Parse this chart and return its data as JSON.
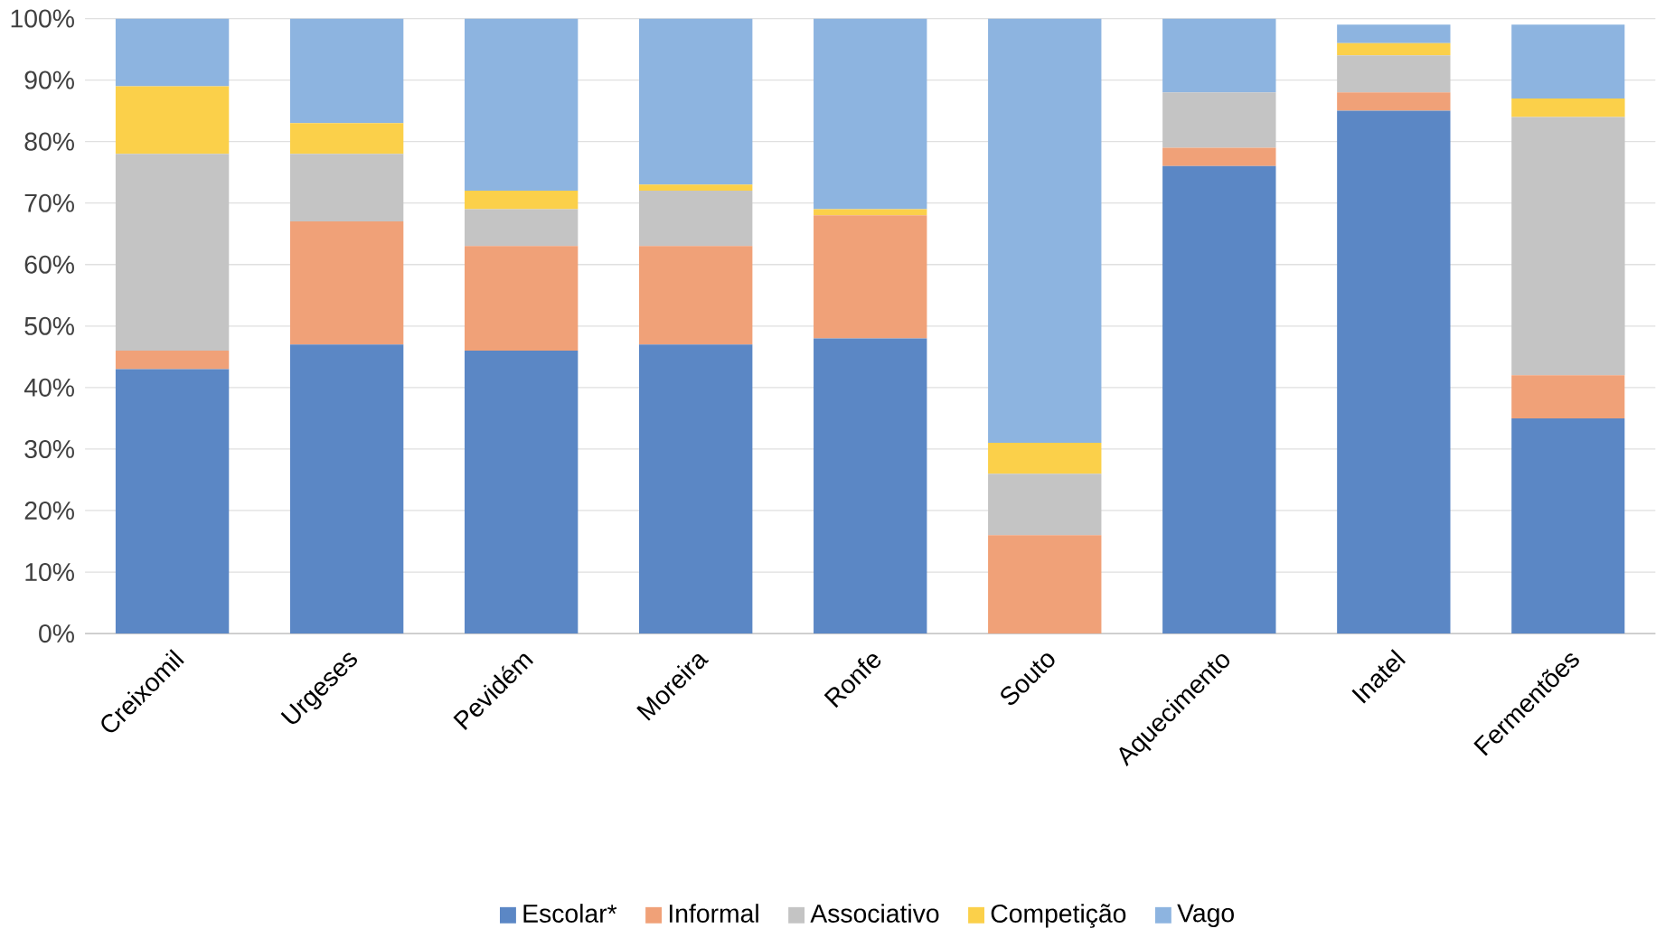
{
  "chart_data": {
    "type": "bar",
    "stacked": true,
    "categories": [
      "Creixomil",
      "Urgeses",
      "Pevidém",
      "Moreira",
      "Ronfe",
      "Souto",
      "Aquecimento",
      "Inatel",
      "Fermentões"
    ],
    "series": [
      {
        "name": "Escolar*",
        "color": "#5b87c5",
        "values": [
          43,
          47,
          46,
          47,
          48,
          0,
          76,
          85,
          35
        ]
      },
      {
        "name": "Informal",
        "color": "#f0a178",
        "values": [
          3,
          20,
          17,
          16,
          20,
          16,
          3,
          3,
          7
        ]
      },
      {
        "name": "Associativo",
        "color": "#c4c4c4",
        "values": [
          32,
          11,
          6,
          9,
          0,
          10,
          9,
          6,
          42
        ]
      },
      {
        "name": "Competição",
        "color": "#fbd04a",
        "values": [
          11,
          5,
          3,
          1,
          1,
          5,
          0,
          2,
          3
        ]
      },
      {
        "name": "Vago",
        "color": "#8db4e0",
        "values": [
          11,
          17,
          28,
          27,
          31,
          69,
          12,
          3,
          12
        ]
      }
    ],
    "ylim": [
      0,
      100
    ],
    "yticks": [
      {
        "value": 0,
        "label": "0%"
      },
      {
        "value": 10,
        "label": "10%"
      },
      {
        "value": 20,
        "label": "20%"
      },
      {
        "value": 30,
        "label": "30%"
      },
      {
        "value": 40,
        "label": "40%"
      },
      {
        "value": 50,
        "label": "50%"
      },
      {
        "value": 60,
        "label": "60%"
      },
      {
        "value": 70,
        "label": "70%"
      },
      {
        "value": 80,
        "label": "80%"
      },
      {
        "value": 90,
        "label": "90%"
      },
      {
        "value": 100,
        "label": "100%"
      }
    ],
    "grid": "y",
    "legend": "bottom"
  }
}
